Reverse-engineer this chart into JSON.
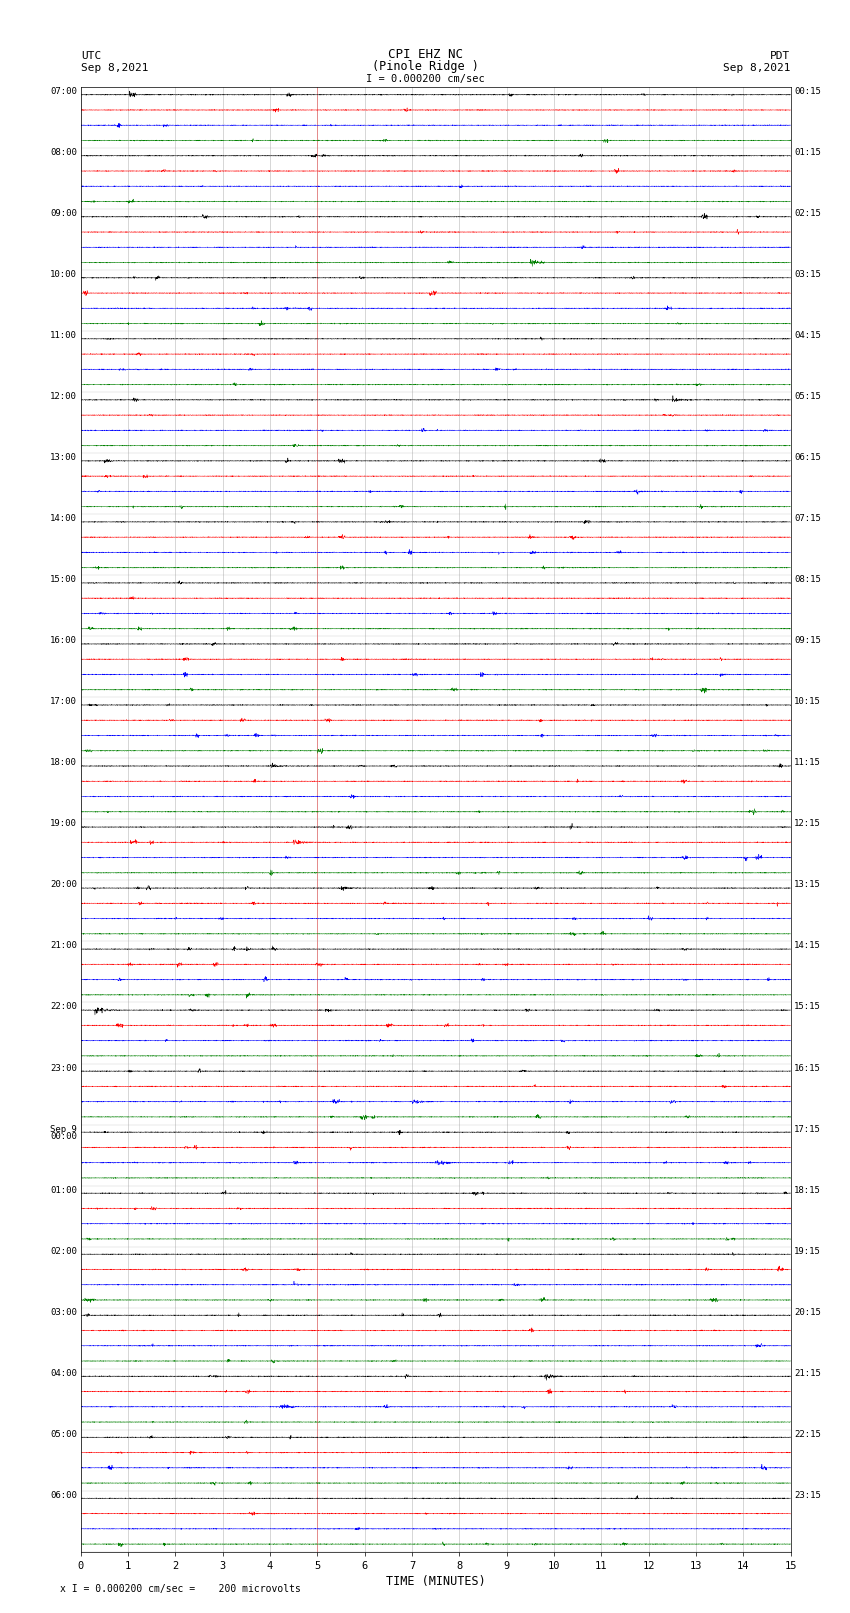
{
  "title_line1": "CPI EHZ NC",
  "title_line2": "(Pinole Ridge )",
  "title_line3": "I = 0.000200 cm/sec",
  "left_header_line1": "UTC",
  "left_header_line2": "Sep 8,2021",
  "right_header_line1": "PDT",
  "right_header_line2": "Sep 8,2021",
  "xlabel": "TIME (MINUTES)",
  "footer": "x I = 0.000200 cm/sec =    200 microvolts",
  "trace_colors": [
    "black",
    "red",
    "blue",
    "green"
  ],
  "n_traces_per_row": 4,
  "bg_color": "white",
  "grid_color": "#999999",
  "text_color": "black",
  "xmin": 0,
  "xmax": 15,
  "xticks": [
    0,
    1,
    2,
    3,
    4,
    5,
    6,
    7,
    8,
    9,
    10,
    11,
    12,
    13,
    14,
    15
  ],
  "figwidth": 8.5,
  "figheight": 16.13,
  "left_utc_labels": [
    "07:00",
    "08:00",
    "09:00",
    "10:00",
    "11:00",
    "12:00",
    "13:00",
    "14:00",
    "15:00",
    "16:00",
    "17:00",
    "18:00",
    "19:00",
    "20:00",
    "21:00",
    "22:00",
    "23:00",
    "Sep 9\n00:00",
    "01:00",
    "02:00",
    "03:00",
    "04:00",
    "05:00",
    "06:00"
  ],
  "right_pdt_labels": [
    "00:15",
    "01:15",
    "02:15",
    "03:15",
    "04:15",
    "05:15",
    "06:15",
    "07:15",
    "08:15",
    "09:15",
    "10:15",
    "11:15",
    "12:15",
    "13:15",
    "14:15",
    "15:15",
    "16:15",
    "17:15",
    "18:15",
    "19:15",
    "20:15",
    "21:15",
    "22:15",
    "23:15"
  ]
}
